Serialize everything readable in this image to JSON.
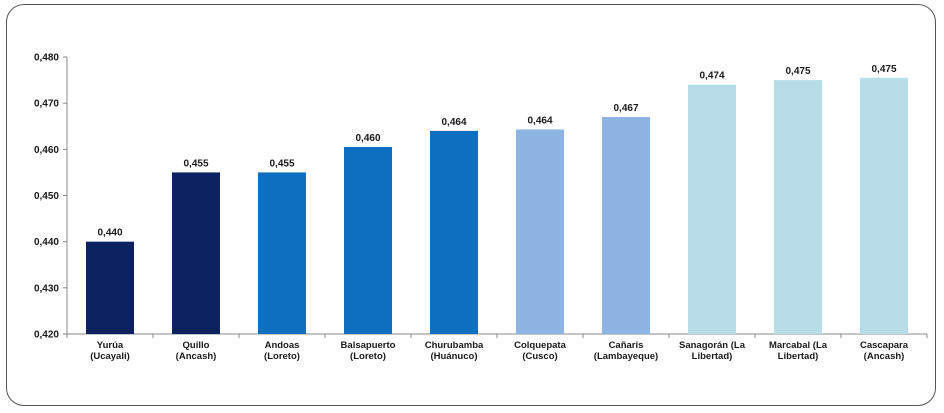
{
  "chart_data": {
    "type": "bar",
    "categories": [
      [
        "Yurúa",
        "(Ucayali)"
      ],
      [
        "Quillo",
        "(Ancash)"
      ],
      [
        "Andoas",
        "(Loreto)"
      ],
      [
        "Balsapuerto",
        "(Loreto)"
      ],
      [
        "Churubamba",
        "(Huánuco)"
      ],
      [
        "Colquepata",
        "(Cusco)"
      ],
      [
        "Cañaris",
        "(Lambayeque)"
      ],
      [
        "Sanagorán (La",
        "Libertad)"
      ],
      [
        "Marcabal (La",
        "Libertad)"
      ],
      [
        "Cascapara",
        "(Ancash)"
      ]
    ],
    "values": [
      0.44,
      0.455,
      0.455,
      0.4605,
      0.464,
      0.4643,
      0.467,
      0.474,
      0.475,
      0.4755
    ],
    "value_labels": [
      "0,440",
      "0,455",
      "0,455",
      "0,460",
      "0,464",
      "0,464",
      "0,467",
      "0,474",
      "0,475",
      "0,475"
    ],
    "bar_colors": [
      "#0b2160",
      "#0b2160",
      "#0e6fc0",
      "#0e6fc0",
      "#0e6fc0",
      "#8eb4e3",
      "#8eb4e3",
      "#b7dde8",
      "#b7dde8",
      "#b7dde8"
    ],
    "yticks": [
      "0,420",
      "0,430",
      "0,440",
      "0,450",
      "0,460",
      "0,470",
      "0,480"
    ],
    "ylim": [
      0.42,
      0.48
    ],
    "grid": false,
    "legend": "none",
    "title": "",
    "xlabel": "",
    "ylabel": ""
  }
}
